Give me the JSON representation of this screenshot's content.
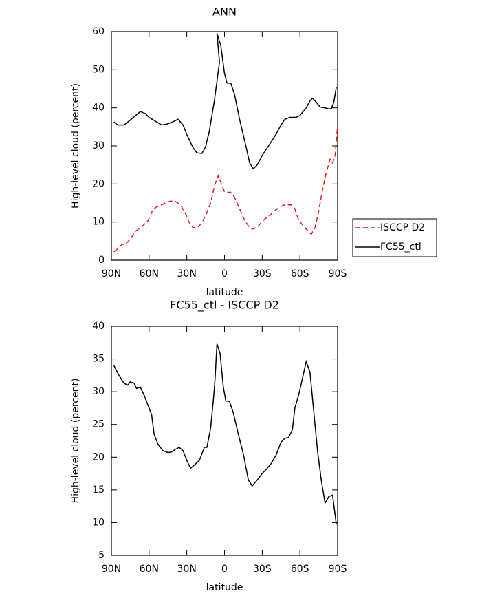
{
  "chart_data": [
    {
      "type": "line",
      "title": "ANN",
      "xlabel": "latitude",
      "ylabel": "High-level cloud (percent)",
      "xlim": [
        90,
        -90
      ],
      "xticks": [
        {
          "value": 90,
          "label": "90N"
        },
        {
          "value": 60,
          "label": "60N"
        },
        {
          "value": 30,
          "label": "30N"
        },
        0,
        {
          "value": -30,
          "label": "30S"
        },
        {
          "value": -60,
          "label": "60S"
        },
        {
          "value": -90,
          "label": "90S"
        }
      ],
      "ylim": [
        0,
        60
      ],
      "yticks": [
        0,
        10,
        20,
        30,
        40,
        50,
        60
      ],
      "legend": "right",
      "series": [
        {
          "name": "ISCCP D2",
          "color": "#e8191c",
          "dash": "dashed",
          "x": [
            88,
            85,
            82,
            78,
            75,
            71,
            68,
            65,
            61,
            57,
            54,
            50,
            46,
            43,
            39,
            35,
            31,
            28,
            25,
            21,
            18,
            14,
            11,
            8,
            5,
            3,
            0,
            -3,
            -5,
            -8,
            -12,
            -16,
            -20,
            -23,
            -27,
            -31,
            -36,
            -40,
            -44,
            -48,
            -53,
            -56,
            -59,
            -62,
            -66,
            -69,
            -72,
            -75,
            -78,
            -81,
            -84,
            -86,
            -88,
            -90
          ],
          "values": [
            2.2,
            3,
            4,
            4.5,
            5.5,
            7.5,
            8.3,
            9,
            10.3,
            13.2,
            14,
            14.5,
            15.2,
            15.5,
            15.4,
            14.5,
            12.2,
            9.8,
            8.5,
            8.7,
            9.8,
            12.5,
            15,
            19.5,
            22.2,
            20.5,
            18,
            17.8,
            17.8,
            16.5,
            13.5,
            10.5,
            8.5,
            8.2,
            9,
            10.5,
            11.8,
            13,
            14,
            14.5,
            14.5,
            13.5,
            10.5,
            9.3,
            7.8,
            6.8,
            8.5,
            13,
            18.5,
            23,
            26.5,
            25.5,
            27.5,
            35.5
          ]
        },
        {
          "name": "FC55_ctl",
          "color": "#000000",
          "dash": "solid",
          "x": [
            88,
            85,
            80,
            75,
            70,
            67,
            63,
            60,
            55,
            50,
            45,
            40,
            37,
            33,
            30,
            25,
            22,
            18,
            15,
            12,
            8,
            4,
            6,
            3,
            0,
            -2,
            -5,
            -8,
            -12,
            -17,
            -20,
            -23,
            -26,
            -30,
            -35,
            -40,
            -45,
            -48,
            -52,
            -57,
            -60,
            -65,
            -68,
            -70,
            -73,
            -76,
            -80,
            -83,
            -85,
            -87,
            -89
          ],
          "values": [
            36.3,
            35.5,
            35.5,
            36.8,
            38.2,
            39,
            38.5,
            37.5,
            36.5,
            35.5,
            35.8,
            36.5,
            37,
            35.5,
            33,
            29.5,
            28.2,
            28,
            29.8,
            34,
            42,
            52,
            59.5,
            56.5,
            49,
            46.5,
            46.5,
            43.5,
            37,
            30,
            25.5,
            24,
            25,
            27.5,
            30,
            32.5,
            35.5,
            37,
            37.5,
            37.5,
            38,
            40,
            41.8,
            42.5,
            41.5,
            40.2,
            40,
            39.7,
            39.8,
            41.5,
            45.5
          ]
        }
      ]
    },
    {
      "type": "line",
      "title": "FC55_ctl - ISCCP D2",
      "xlabel": "latitude",
      "ylabel": "High-level cloud (percent)",
      "xlim": [
        90,
        -90
      ],
      "xticks": [
        {
          "value": 90,
          "label": "90N"
        },
        {
          "value": 60,
          "label": "60N"
        },
        {
          "value": 30,
          "label": "30N"
        },
        0,
        {
          "value": -30,
          "label": "30S"
        },
        {
          "value": -60,
          "label": "60S"
        },
        {
          "value": -90,
          "label": "90S"
        }
      ],
      "ylim": [
        5,
        40
      ],
      "yticks": [
        5,
        10,
        15,
        20,
        25,
        30,
        35,
        40
      ],
      "color": "#000000",
      "x": [
        88,
        84,
        80,
        77,
        75,
        72,
        70,
        67,
        64,
        61,
        58,
        56,
        53,
        49,
        45,
        42,
        39,
        36,
        33,
        30,
        27,
        24,
        20,
        16,
        14,
        11,
        8.5,
        7.5,
        6,
        3.5,
        1,
        -1,
        -4,
        -7,
        -11,
        -15,
        -19,
        -22,
        -26,
        -30,
        -34,
        -37,
        -41,
        -45,
        -48,
        -51,
        -54,
        -56,
        -59,
        -62,
        -65,
        -68,
        -71,
        -74,
        -77,
        -80,
        -83,
        -86,
        -89
      ],
      "values": [
        34,
        32.5,
        31.3,
        31,
        31.5,
        31.3,
        30.5,
        30.7,
        29.5,
        28,
        26.5,
        23.5,
        22,
        21,
        20.7,
        20.8,
        21.2,
        21.5,
        21,
        19.5,
        18.3,
        18.8,
        19.5,
        21.5,
        21.5,
        24.5,
        29.5,
        32,
        37.3,
        35.8,
        30.8,
        28.6,
        28.5,
        26.8,
        23.5,
        20.5,
        16.5,
        15.6,
        16.5,
        17.5,
        18.3,
        19,
        20.3,
        22.3,
        22.9,
        23,
        24.2,
        27.5,
        29.5,
        32,
        34.6,
        33,
        27,
        21,
        16.5,
        13,
        14,
        14.2,
        9.7
      ]
    }
  ]
}
